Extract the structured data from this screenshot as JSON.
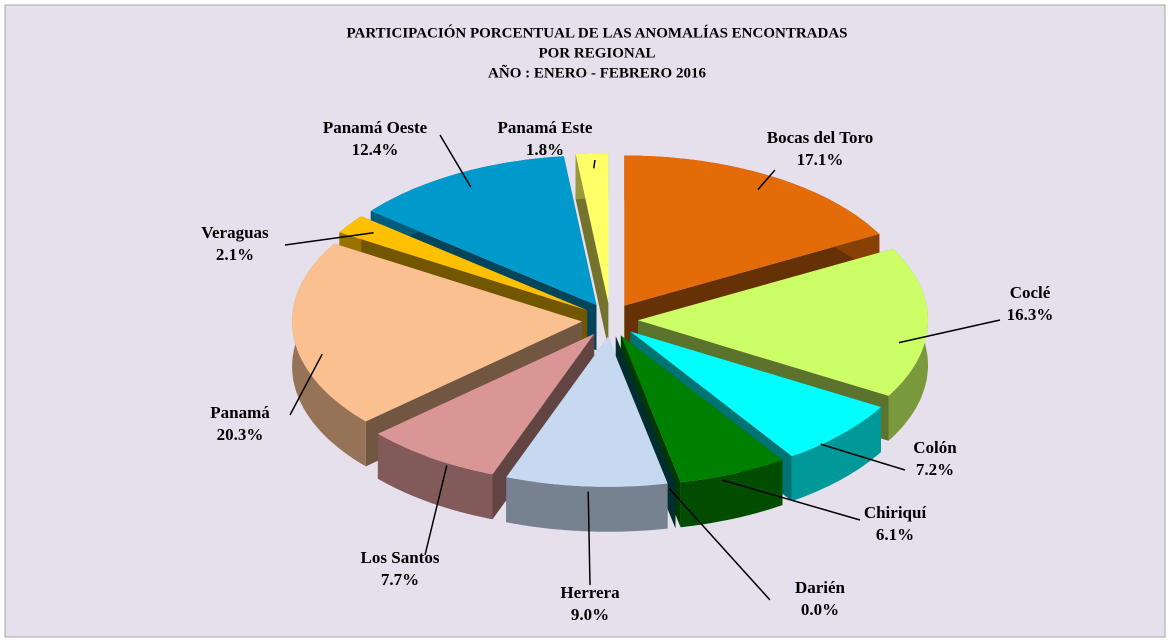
{
  "chart_data": {
    "type": "pie",
    "title": [
      "PARTICIPACIÓN PORCENTUAL DE LAS ANOMALÍAS  ENCONTRADAS",
      "POR REGIONAL",
      "AÑO : ENERO - FEBRERO 2016"
    ],
    "categories": [
      "Bocas del Toro",
      "Coclé",
      "Colón",
      "Chiriquí",
      "Darién",
      "Herrera",
      "Los Santos",
      "Panamá",
      "Veraguas",
      "Panamá Oeste",
      "Panamá Este"
    ],
    "values": [
      17.1,
      16.3,
      7.2,
      6.1,
      0.0,
      9.0,
      7.7,
      20.3,
      2.1,
      12.4,
      1.8
    ],
    "value_labels": [
      "17.1%",
      "16.3%",
      "7.2%",
      "6.1%",
      "0.0%",
      "9.0%",
      "7.7%",
      "20.3%",
      "2.1%",
      "12.4%",
      "1.8%"
    ],
    "colors": [
      "#e36c09",
      "#ccff66",
      "#00ffff",
      "#008000",
      "#006666",
      "#c6d9f1",
      "#d99694",
      "#fac090",
      "#ffc000",
      "#0099cc",
      "#ffff66"
    ]
  }
}
